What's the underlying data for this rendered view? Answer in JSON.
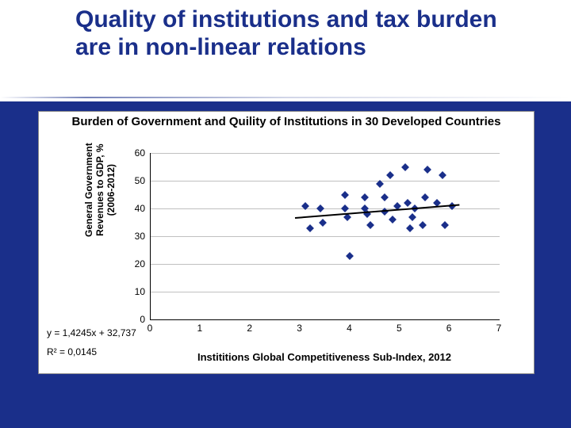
{
  "slide": {
    "background_color": "#1a2f8a",
    "title": "Quality of institutions and tax burden are in non-linear relations",
    "title_color": "#1a2f8a",
    "title_bg": "#ffffff",
    "title_fontsize": 30
  },
  "chart": {
    "type": "scatter",
    "title": "Burden of Government and Quility of Institutions in 30 Developed Countries",
    "title_fontsize": 15,
    "background_color": "#ffffff",
    "grid_color": "#c0c0c0",
    "axis_color": "#000000",
    "xlabel": "Instititions Global Competitiveness Sub-Index, 2012",
    "ylabel_line1": "General Government",
    "ylabel_line2": "Revenues to GDP, %",
    "ylabel_line3": "(2006-2012)",
    "label_fontsize": 12,
    "xlim": [
      0,
      7
    ],
    "ylim": [
      0,
      60
    ],
    "yticks": [
      0,
      10,
      20,
      30,
      40,
      50,
      60
    ],
    "xticks": [
      0,
      1,
      2,
      3,
      4,
      5,
      6,
      7
    ],
    "marker_style": "diamond",
    "marker_color": "#1a2f8a",
    "marker_size": 7,
    "points": [
      {
        "x": 3.1,
        "y": 41
      },
      {
        "x": 3.2,
        "y": 33
      },
      {
        "x": 3.4,
        "y": 40
      },
      {
        "x": 3.45,
        "y": 35
      },
      {
        "x": 3.9,
        "y": 45
      },
      {
        "x": 3.9,
        "y": 40
      },
      {
        "x": 3.95,
        "y": 37
      },
      {
        "x": 4.0,
        "y": 23
      },
      {
        "x": 4.3,
        "y": 40
      },
      {
        "x": 4.3,
        "y": 44
      },
      {
        "x": 4.35,
        "y": 38
      },
      {
        "x": 4.4,
        "y": 34
      },
      {
        "x": 4.6,
        "y": 49
      },
      {
        "x": 4.7,
        "y": 44
      },
      {
        "x": 4.7,
        "y": 39
      },
      {
        "x": 4.8,
        "y": 52
      },
      {
        "x": 4.85,
        "y": 36
      },
      {
        "x": 4.95,
        "y": 41
      },
      {
        "x": 5.1,
        "y": 55
      },
      {
        "x": 5.15,
        "y": 42
      },
      {
        "x": 5.2,
        "y": 33
      },
      {
        "x": 5.25,
        "y": 37
      },
      {
        "x": 5.3,
        "y": 40
      },
      {
        "x": 5.45,
        "y": 34
      },
      {
        "x": 5.5,
        "y": 44
      },
      {
        "x": 5.55,
        "y": 54
      },
      {
        "x": 5.75,
        "y": 42
      },
      {
        "x": 5.85,
        "y": 52
      },
      {
        "x": 5.9,
        "y": 34
      },
      {
        "x": 6.05,
        "y": 41
      }
    ],
    "trendline": {
      "slope": 1.4245,
      "intercept": 32.737,
      "line_color": "#000000",
      "line_width": 2,
      "x_start": 2.9,
      "x_end": 6.2
    },
    "equation_text": "y = 1,4245x + 32,737",
    "r2_text": "R² = 0,0145"
  }
}
